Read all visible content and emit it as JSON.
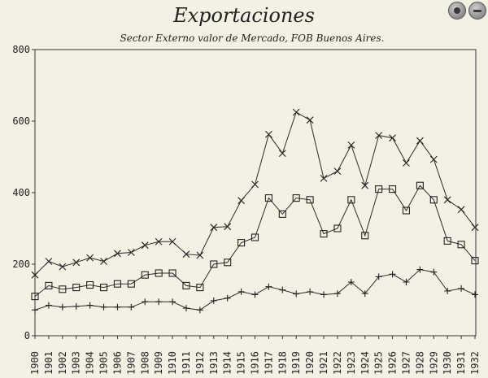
{
  "chart_data": {
    "type": "line",
    "title": "Exportaciones",
    "subtitle": "Sector Externo valor de Mercado, FOB Buenos Aires.",
    "xlabel": "",
    "ylabel": "",
    "ylim": [
      0,
      800
    ],
    "yticks": [
      0,
      200,
      400,
      600,
      800
    ],
    "grid": false,
    "categories": [
      "1900",
      "1901",
      "1902",
      "1903",
      "1904",
      "1905",
      "1906",
      "1907",
      "1908",
      "1909",
      "1910",
      "1911",
      "1912",
      "1913",
      "1914",
      "1915",
      "1916",
      "1917",
      "1918",
      "1919",
      "1920",
      "1921",
      "1922",
      "1923",
      "1924",
      "1925",
      "1926",
      "1927",
      "1928",
      "1929",
      "1930",
      "1931",
      "1932"
    ],
    "series": [
      {
        "marker": "x",
        "values": [
          170,
          208,
          193,
          205,
          218,
          208,
          230,
          233,
          253,
          263,
          263,
          228,
          225,
          303,
          305,
          378,
          423,
          563,
          510,
          625,
          603,
          440,
          460,
          533,
          420,
          560,
          553,
          483,
          545,
          493,
          380,
          353,
          303
        ]
      },
      {
        "marker": "square",
        "values": [
          110,
          140,
          130,
          135,
          142,
          135,
          145,
          145,
          170,
          175,
          175,
          140,
          135,
          200,
          205,
          260,
          275,
          385,
          340,
          385,
          380,
          285,
          300,
          380,
          280,
          410,
          410,
          350,
          420,
          380,
          265,
          255,
          210
        ]
      },
      {
        "marker": "plus",
        "values": [
          72,
          85,
          80,
          82,
          85,
          80,
          80,
          80,
          95,
          95,
          95,
          77,
          72,
          98,
          105,
          123,
          115,
          137,
          128,
          117,
          123,
          115,
          118,
          150,
          118,
          165,
          172,
          150,
          185,
          178,
          125,
          132,
          115
        ]
      }
    ]
  },
  "window_buttons": [
    {
      "icon": "record-icon"
    },
    {
      "icon": "more-icon"
    }
  ]
}
